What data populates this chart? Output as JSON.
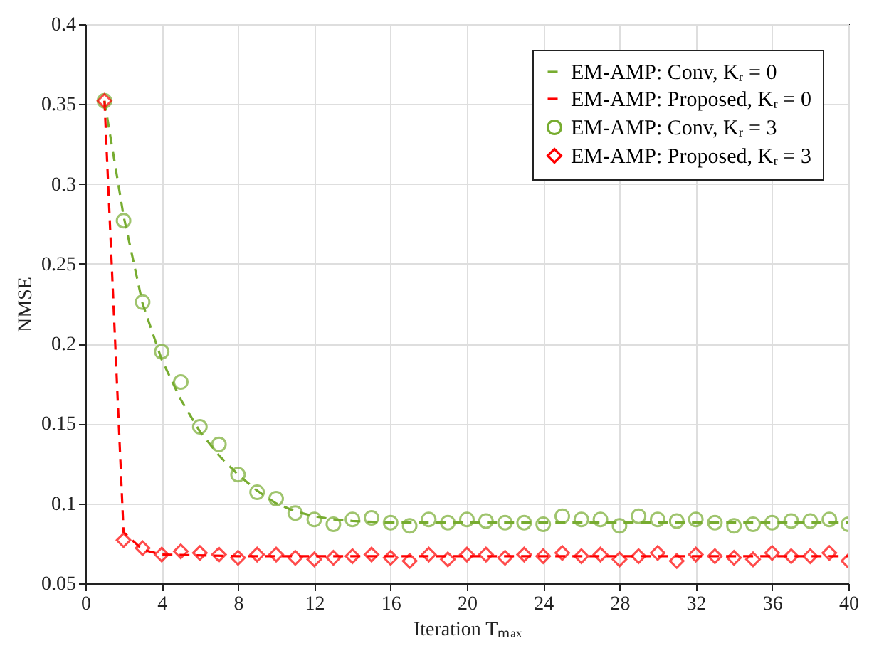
{
  "chart_data": {
    "type": "line",
    "xlabel": "Iteration Tₘₐₓ",
    "ylabel": "NMSE",
    "xlim": [
      0,
      40
    ],
    "ylim": [
      0.05,
      0.4
    ],
    "xticks": [
      0,
      4,
      8,
      12,
      16,
      20,
      24,
      28,
      32,
      36,
      40
    ],
    "yticks": [
      0.05,
      0.1,
      0.15,
      0.2,
      0.25,
      0.3,
      0.35,
      0.4
    ],
    "grid": true,
    "legend": "top right",
    "series": [
      {
        "name": "EM-AMP: Conv, Kᵣ = 0",
        "type": "line",
        "line_style": "dashed",
        "color": "#77ac30",
        "x": [
          1,
          2,
          3,
          4,
          5,
          6,
          7,
          8,
          9,
          10,
          11,
          12,
          13,
          14,
          16,
          20,
          24,
          28,
          32,
          36,
          40
        ],
        "values": [
          0.352,
          0.28,
          0.225,
          0.19,
          0.165,
          0.145,
          0.13,
          0.118,
          0.108,
          0.1,
          0.095,
          0.092,
          0.09,
          0.089,
          0.088,
          0.088,
          0.088,
          0.088,
          0.088,
          0.088,
          0.088
        ]
      },
      {
        "name": "EM-AMP: Proposed, Kᵣ = 0",
        "type": "line",
        "line_style": "dashed",
        "color": "#ff0000",
        "x": [
          1,
          2,
          3,
          4,
          8,
          12,
          16,
          20,
          24,
          28,
          32,
          36,
          40
        ],
        "values": [
          0.352,
          0.082,
          0.071,
          0.068,
          0.067,
          0.067,
          0.067,
          0.067,
          0.067,
          0.067,
          0.067,
          0.067,
          0.067
        ]
      },
      {
        "name": "EM-AMP: Conv, Kᵣ = 3",
        "type": "scatter",
        "marker": "circle",
        "color": "#77ac30",
        "x": [
          1,
          2,
          3,
          4,
          5,
          6,
          7,
          8,
          9,
          10,
          11,
          12,
          13,
          14,
          15,
          16,
          17,
          18,
          19,
          20,
          21,
          22,
          23,
          24,
          25,
          26,
          27,
          28,
          29,
          30,
          31,
          32,
          33,
          34,
          35,
          36,
          37,
          38,
          39,
          40
        ],
        "values": [
          0.352,
          0.277,
          0.226,
          0.195,
          0.176,
          0.148,
          0.137,
          0.118,
          0.107,
          0.103,
          0.094,
          0.09,
          0.087,
          0.09,
          0.091,
          0.088,
          0.086,
          0.09,
          0.088,
          0.09,
          0.089,
          0.088,
          0.088,
          0.087,
          0.092,
          0.09,
          0.09,
          0.086,
          0.092,
          0.09,
          0.089,
          0.09,
          0.088,
          0.086,
          0.087,
          0.088,
          0.089,
          0.089,
          0.09,
          0.087
        ]
      },
      {
        "name": "EM-AMP: Proposed, Kᵣ = 3",
        "type": "scatter",
        "marker": "diamond",
        "color": "#ff0000",
        "x": [
          1,
          2,
          3,
          4,
          5,
          6,
          7,
          8,
          9,
          10,
          11,
          12,
          13,
          14,
          15,
          16,
          17,
          18,
          19,
          20,
          21,
          22,
          23,
          24,
          25,
          26,
          27,
          28,
          29,
          30,
          31,
          32,
          33,
          34,
          35,
          36,
          37,
          38,
          39,
          40
        ],
        "values": [
          0.352,
          0.077,
          0.072,
          0.068,
          0.07,
          0.069,
          0.068,
          0.066,
          0.068,
          0.068,
          0.066,
          0.065,
          0.066,
          0.067,
          0.068,
          0.066,
          0.064,
          0.068,
          0.065,
          0.068,
          0.068,
          0.066,
          0.068,
          0.067,
          0.069,
          0.067,
          0.068,
          0.065,
          0.067,
          0.069,
          0.064,
          0.068,
          0.067,
          0.066,
          0.065,
          0.069,
          0.067,
          0.067,
          0.069,
          0.064
        ]
      }
    ]
  }
}
